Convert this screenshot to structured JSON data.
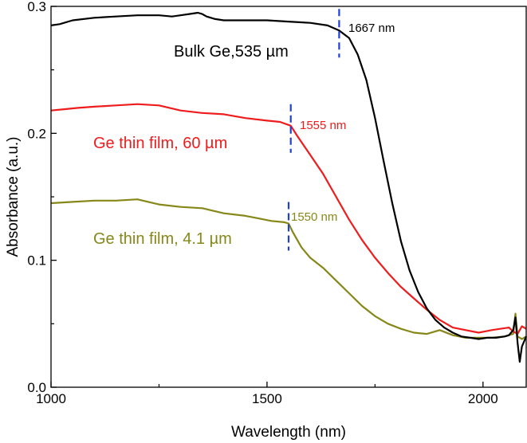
{
  "chart_data": {
    "type": "line",
    "title": "",
    "xlabel": "Wavelength (nm)",
    "ylabel": "Absorbance (a.u.)",
    "xlim": [
      1000,
      2100
    ],
    "ylim": [
      0.0,
      0.3
    ],
    "x_ticks": [
      1000,
      1500,
      2000
    ],
    "x_tick_labels": [
      "1000",
      "1500",
      "2000"
    ],
    "y_ticks": [
      0.0,
      0.1,
      0.2,
      0.3
    ],
    "y_tick_labels": [
      "0.0",
      "0.1",
      "0.2",
      "0.3"
    ],
    "grid": false,
    "series": [
      {
        "name": "Bulk Ge,535 µm",
        "color": "#000000",
        "x": [
          1000,
          1020,
          1050,
          1100,
          1150,
          1200,
          1250,
          1280,
          1300,
          1320,
          1340,
          1350,
          1360,
          1380,
          1400,
          1450,
          1500,
          1550,
          1600,
          1640,
          1667,
          1690,
          1710,
          1730,
          1750,
          1770,
          1790,
          1810,
          1830,
          1850,
          1870,
          1890,
          1910,
          1930,
          1950,
          1970,
          1990,
          2010,
          2030,
          2050,
          2060,
          2070,
          2075,
          2080,
          2085,
          2090,
          2100
        ],
        "y": [
          0.285,
          0.286,
          0.289,
          0.291,
          0.292,
          0.293,
          0.293,
          0.292,
          0.293,
          0.294,
          0.295,
          0.294,
          0.292,
          0.29,
          0.289,
          0.289,
          0.289,
          0.288,
          0.287,
          0.285,
          0.281,
          0.275,
          0.262,
          0.242,
          0.212,
          0.178,
          0.145,
          0.115,
          0.092,
          0.075,
          0.062,
          0.053,
          0.047,
          0.043,
          0.04,
          0.039,
          0.038,
          0.039,
          0.039,
          0.04,
          0.041,
          0.045,
          0.055,
          0.035,
          0.02,
          0.032,
          0.04
        ]
      },
      {
        "name": "Ge thin film, 60 µm",
        "color": "#ee1c1c",
        "x": [
          1000,
          1030,
          1060,
          1100,
          1150,
          1200,
          1250,
          1300,
          1350,
          1400,
          1450,
          1500,
          1530,
          1555,
          1570,
          1600,
          1630,
          1660,
          1690,
          1720,
          1750,
          1780,
          1810,
          1840,
          1870,
          1900,
          1930,
          1960,
          1990,
          2020,
          2040,
          2060,
          2070,
          2080,
          2090,
          2100
        ],
        "y": [
          0.218,
          0.219,
          0.22,
          0.221,
          0.222,
          0.223,
          0.222,
          0.218,
          0.216,
          0.215,
          0.212,
          0.21,
          0.209,
          0.206,
          0.198,
          0.183,
          0.168,
          0.15,
          0.132,
          0.116,
          0.102,
          0.09,
          0.079,
          0.07,
          0.061,
          0.053,
          0.047,
          0.045,
          0.043,
          0.045,
          0.046,
          0.047,
          0.044,
          0.042,
          0.048,
          0.046
        ]
      },
      {
        "name": "Ge thin film, 4.1 µm",
        "color": "#878719",
        "x": [
          1000,
          1050,
          1100,
          1150,
          1200,
          1250,
          1300,
          1350,
          1400,
          1450,
          1480,
          1510,
          1540,
          1550,
          1560,
          1580,
          1600,
          1630,
          1660,
          1690,
          1720,
          1750,
          1780,
          1810,
          1840,
          1870,
          1900,
          1930,
          1960,
          1990,
          2020,
          2050,
          2070,
          2075,
          2080,
          2090,
          2100
        ],
        "y": [
          0.145,
          0.146,
          0.147,
          0.147,
          0.148,
          0.144,
          0.142,
          0.141,
          0.137,
          0.135,
          0.133,
          0.131,
          0.13,
          0.129,
          0.122,
          0.11,
          0.102,
          0.094,
          0.084,
          0.074,
          0.064,
          0.056,
          0.05,
          0.046,
          0.043,
          0.042,
          0.045,
          0.041,
          0.039,
          0.039,
          0.039,
          0.04,
          0.042,
          0.058,
          0.04,
          0.038,
          0.04
        ]
      }
    ],
    "annotations": [
      {
        "series": "Bulk Ge,535 µm",
        "text": "1667 nm",
        "x": 1667,
        "color": "#000000"
      },
      {
        "series": "Ge thin film, 60 µm",
        "text": "1555 nm",
        "x": 1555,
        "color": "#ee1c1c"
      },
      {
        "series": "Ge thin film, 4.1 µm",
        "text": "1550 nm",
        "x": 1550,
        "color": "#878719"
      }
    ],
    "marker_color": "#1f3fd6"
  }
}
